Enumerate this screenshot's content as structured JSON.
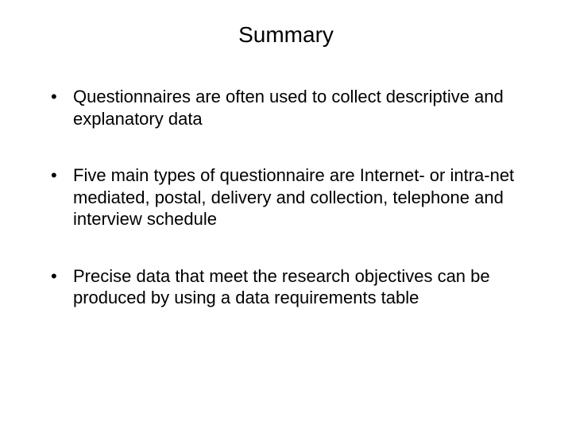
{
  "slide": {
    "title": "Summary",
    "bullets": [
      "Questionnaires are often used to collect descriptive and explanatory data",
      "Five main types of questionnaire are Internet- or intra-net mediated, postal, delivery and collection, telephone and interview schedule",
      "Precise data that meet the research objectives can be produced by using a data requirements table"
    ],
    "title_fontsize": 28,
    "body_fontsize": 22,
    "text_color": "#000000",
    "background_color": "#ffffff",
    "font_family": "Arial"
  }
}
